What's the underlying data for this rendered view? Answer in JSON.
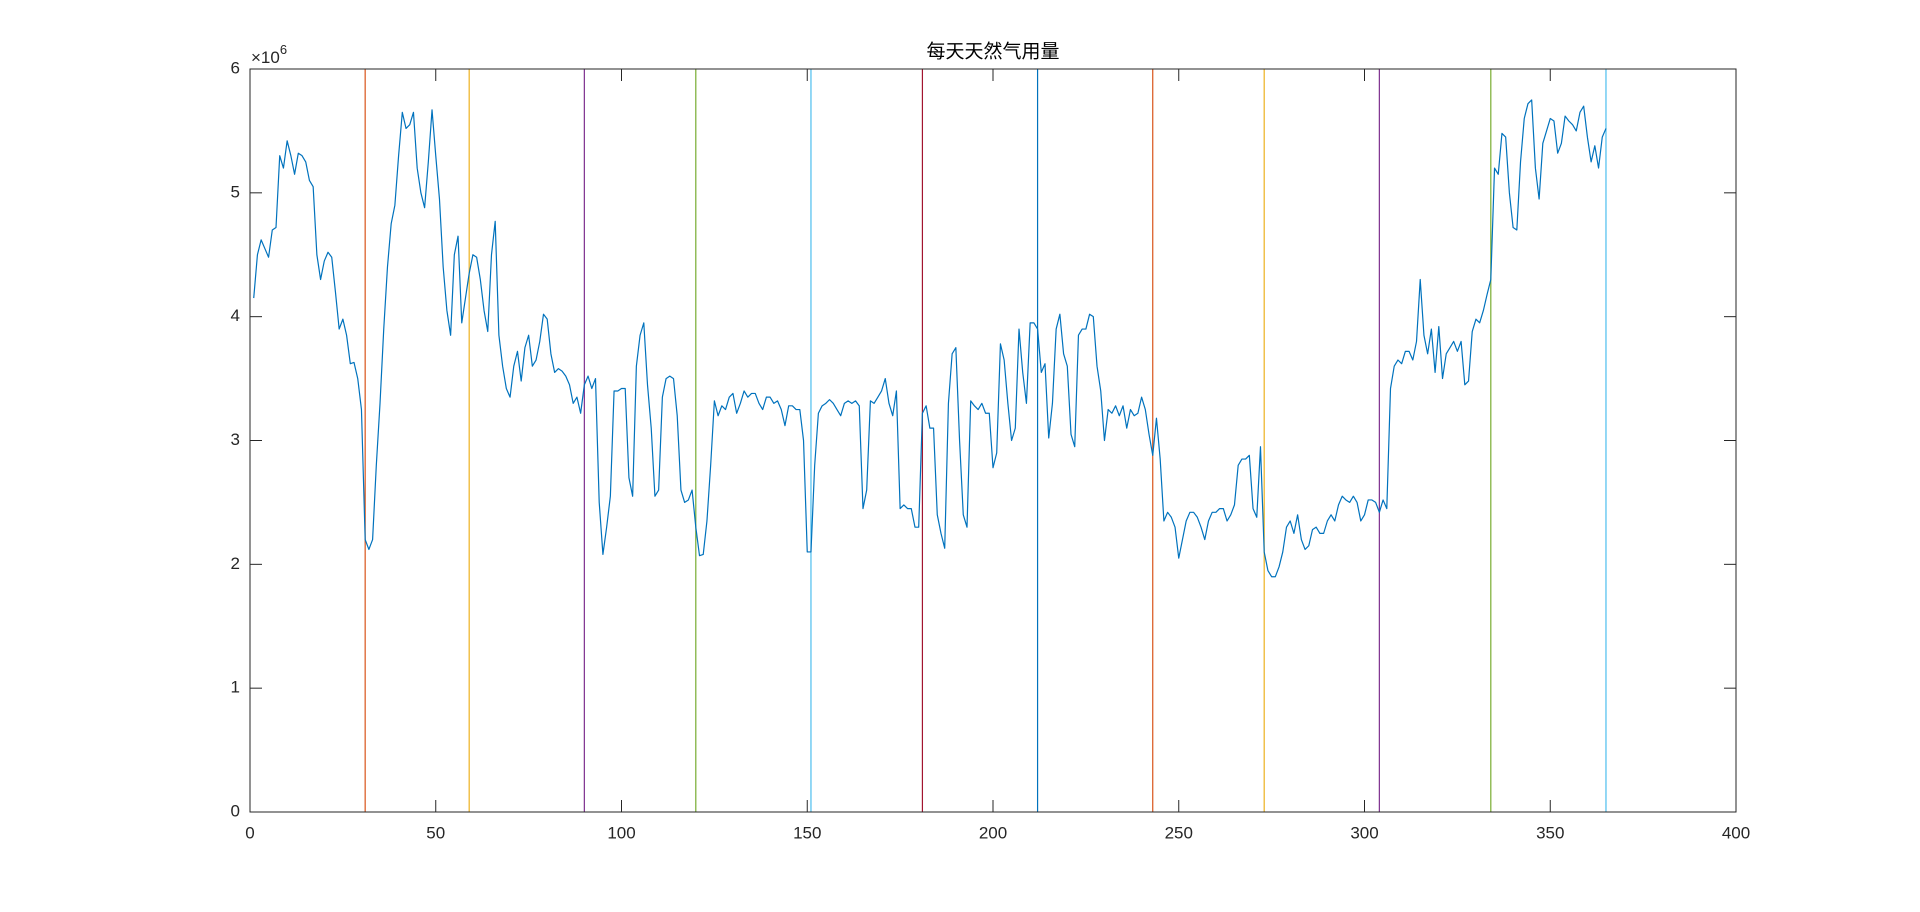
{
  "chart_data": {
    "type": "line",
    "title": "每天天然气用量",
    "y_multiplier": {
      "base": "×10",
      "exponent": "6"
    },
    "xlim": [
      0,
      400
    ],
    "xticks": [
      0,
      50,
      100,
      150,
      200,
      250,
      300,
      350,
      400
    ],
    "ylim": [
      0,
      6
    ],
    "yticks": [
      0,
      1,
      2,
      3,
      4,
      5,
      6
    ],
    "box": true,
    "vlines": {
      "x": [
        31,
        59,
        90,
        120,
        151,
        181,
        212,
        243,
        273,
        304,
        334,
        365
      ],
      "colors": [
        "#D95319",
        "#EDB120",
        "#7E2F8E",
        "#77AC30",
        "#4DBEEE",
        "#A2142F",
        "#0072BD",
        "#D95319",
        "#EDB120",
        "#7E2F8E",
        "#77AC30",
        "#4DBEEE"
      ]
    },
    "series": [
      {
        "color": "#0072BD",
        "x": [
          1,
          2,
          3,
          4,
          5,
          6,
          7,
          8,
          9,
          10,
          11,
          12,
          13,
          14,
          15,
          16,
          17,
          18,
          19,
          20,
          21,
          22,
          23,
          24,
          25,
          26,
          27,
          28,
          29,
          30,
          31,
          32,
          33,
          34,
          35,
          36,
          37,
          38,
          39,
          40,
          41,
          42,
          43,
          44,
          45,
          46,
          47,
          48,
          49,
          50,
          51,
          52,
          53,
          54,
          55,
          56,
          57,
          58,
          59,
          60,
          61,
          62,
          63,
          64,
          65,
          66,
          67,
          68,
          69,
          70,
          71,
          72,
          73,
          74,
          75,
          76,
          77,
          78,
          79,
          80,
          81,
          82,
          83,
          84,
          85,
          86,
          87,
          88,
          89,
          90,
          91,
          92,
          93,
          94,
          95,
          96,
          97,
          98,
          99,
          100,
          101,
          102,
          103,
          104,
          105,
          106,
          107,
          108,
          109,
          110,
          111,
          112,
          113,
          114,
          115,
          116,
          117,
          118,
          119,
          120,
          121,
          122,
          123,
          124,
          125,
          126,
          127,
          128,
          129,
          130,
          131,
          132,
          133,
          134,
          135,
          136,
          137,
          138,
          139,
          140,
          141,
          142,
          143,
          144,
          145,
          146,
          147,
          148,
          149,
          150,
          151,
          152,
          153,
          154,
          155,
          156,
          157,
          158,
          159,
          160,
          161,
          162,
          163,
          164,
          165,
          166,
          167,
          168,
          169,
          170,
          171,
          172,
          173,
          174,
          175,
          176,
          177,
          178,
          179,
          180,
          181,
          182,
          183,
          184,
          185,
          186,
          187,
          188,
          189,
          190,
          191,
          192,
          193,
          194,
          195,
          196,
          197,
          198,
          199,
          200,
          201,
          202,
          203,
          204,
          205,
          206,
          207,
          208,
          209,
          210,
          211,
          212,
          213,
          214,
          215,
          216,
          217,
          218,
          219,
          220,
          221,
          222,
          223,
          224,
          225,
          226,
          227,
          228,
          229,
          230,
          231,
          232,
          233,
          234,
          235,
          236,
          237,
          238,
          239,
          240,
          241,
          242,
          243,
          244,
          245,
          246,
          247,
          248,
          249,
          250,
          251,
          252,
          253,
          254,
          255,
          256,
          257,
          258,
          259,
          260,
          261,
          262,
          263,
          264,
          265,
          266,
          267,
          268,
          269,
          270,
          271,
          272,
          273,
          274,
          275,
          276,
          277,
          278,
          279,
          280,
          281,
          282,
          283,
          284,
          285,
          286,
          287,
          288,
          289,
          290,
          291,
          292,
          293,
          294,
          295,
          296,
          297,
          298,
          299,
          300,
          301,
          302,
          303,
          304,
          305,
          306,
          307,
          308,
          309,
          310,
          311,
          312,
          313,
          314,
          315,
          316,
          317,
          318,
          319,
          320,
          321,
          322,
          323,
          324,
          325,
          326,
          327,
          328,
          329,
          330,
          331,
          332,
          333,
          334,
          335,
          336,
          337,
          338,
          339,
          340,
          341,
          342,
          343,
          344,
          345,
          346,
          347,
          348,
          349,
          350,
          351,
          352,
          353,
          354,
          355,
          356,
          357,
          358,
          359,
          360,
          361,
          362,
          363,
          364,
          365
        ],
        "values": [
          4.15,
          4.5,
          4.62,
          4.55,
          4.48,
          4.7,
          4.72,
          5.3,
          5.2,
          5.42,
          5.3,
          5.15,
          5.32,
          5.3,
          5.25,
          5.1,
          5.05,
          4.5,
          4.3,
          4.45,
          4.52,
          4.48,
          4.2,
          3.9,
          3.98,
          3.85,
          3.62,
          3.63,
          3.5,
          3.25,
          2.2,
          2.12,
          2.2,
          2.8,
          3.3,
          3.9,
          4.4,
          4.75,
          4.9,
          5.3,
          5.65,
          5.52,
          5.55,
          5.65,
          5.2,
          5.0,
          4.88,
          5.25,
          5.67,
          5.3,
          4.95,
          4.4,
          4.05,
          3.85,
          4.5,
          4.65,
          3.95,
          4.15,
          4.35,
          4.5,
          4.48,
          4.3,
          4.05,
          3.88,
          4.5,
          4.77,
          3.85,
          3.6,
          3.42,
          3.35,
          3.6,
          3.72,
          3.48,
          3.75,
          3.85,
          3.6,
          3.65,
          3.8,
          4.02,
          3.98,
          3.7,
          3.55,
          3.58,
          3.56,
          3.52,
          3.45,
          3.3,
          3.35,
          3.22,
          3.45,
          3.52,
          3.42,
          3.5,
          2.5,
          2.08,
          2.3,
          2.55,
          3.4,
          3.4,
          3.42,
          3.42,
          2.7,
          2.55,
          3.6,
          3.85,
          3.95,
          3.45,
          3.1,
          2.55,
          2.6,
          3.35,
          3.5,
          3.52,
          3.5,
          3.2,
          2.6,
          2.5,
          2.52,
          2.6,
          2.3,
          2.07,
          2.08,
          2.35,
          2.8,
          3.32,
          3.2,
          3.28,
          3.25,
          3.35,
          3.38,
          3.22,
          3.3,
          3.4,
          3.35,
          3.38,
          3.38,
          3.3,
          3.25,
          3.35,
          3.35,
          3.3,
          3.32,
          3.25,
          3.12,
          3.28,
          3.28,
          3.25,
          3.25,
          3.0,
          2.1,
          2.1,
          2.8,
          3.22,
          3.28,
          3.3,
          3.33,
          3.3,
          3.25,
          3.2,
          3.3,
          3.32,
          3.3,
          3.32,
          3.28,
          2.45,
          2.6,
          3.32,
          3.3,
          3.35,
          3.4,
          3.5,
          3.3,
          3.2,
          3.4,
          2.45,
          2.48,
          2.45,
          2.45,
          2.3,
          2.3,
          3.22,
          3.28,
          3.1,
          3.1,
          2.4,
          2.25,
          2.13,
          3.3,
          3.7,
          3.75,
          3.0,
          2.4,
          2.3,
          3.32,
          3.28,
          3.25,
          3.3,
          3.22,
          3.22,
          2.78,
          2.9,
          3.78,
          3.65,
          3.3,
          3.0,
          3.1,
          3.9,
          3.55,
          3.3,
          3.95,
          3.95,
          3.9,
          3.55,
          3.62,
          3.02,
          3.3,
          3.9,
          4.02,
          3.7,
          3.6,
          3.05,
          2.95,
          3.85,
          3.9,
          3.9,
          4.02,
          4.0,
          3.6,
          3.4,
          3.0,
          3.25,
          3.22,
          3.28,
          3.2,
          3.28,
          3.1,
          3.25,
          3.2,
          3.22,
          3.35,
          3.25,
          3.05,
          2.88,
          3.18,
          2.85,
          2.35,
          2.42,
          2.38,
          2.3,
          2.05,
          2.2,
          2.35,
          2.42,
          2.42,
          2.38,
          2.3,
          2.2,
          2.35,
          2.42,
          2.42,
          2.45,
          2.45,
          2.35,
          2.4,
          2.48,
          2.8,
          2.85,
          2.85,
          2.88,
          2.45,
          2.38,
          2.95,
          2.1,
          1.95,
          1.9,
          1.9,
          1.98,
          2.1,
          2.3,
          2.35,
          2.25,
          2.4,
          2.2,
          2.12,
          2.15,
          2.28,
          2.3,
          2.25,
          2.25,
          2.35,
          2.4,
          2.35,
          2.48,
          2.55,
          2.52,
          2.5,
          2.55,
          2.5,
          2.35,
          2.4,
          2.52,
          2.52,
          2.5,
          2.42,
          2.52,
          2.45,
          3.42,
          3.6,
          3.65,
          3.62,
          3.72,
          3.72,
          3.65,
          3.8,
          4.3,
          3.85,
          3.7,
          3.9,
          3.55,
          3.92,
          3.5,
          3.7,
          3.75,
          3.8,
          3.72,
          3.8,
          3.45,
          3.48,
          3.88,
          3.98,
          3.95,
          4.05,
          4.18,
          4.3,
          5.2,
          5.15,
          5.48,
          5.45,
          5.0,
          4.72,
          4.7,
          5.25,
          5.6,
          5.72,
          5.75,
          5.2,
          4.95,
          5.4,
          5.5,
          5.6,
          5.58,
          5.32,
          5.4,
          5.62,
          5.58,
          5.55,
          5.5,
          5.65,
          5.7,
          5.45,
          5.25,
          5.38,
          5.2,
          5.45,
          5.52
        ]
      }
    ]
  }
}
